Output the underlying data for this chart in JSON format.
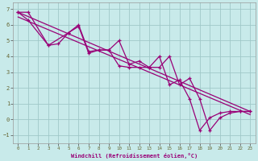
{
  "xlabel": "Windchill (Refroidissement éolien,°C)",
  "background_color": "#c8eaea",
  "grid_color": "#a0c8c8",
  "line_color": "#990077",
  "xlim": [
    -0.5,
    23.5
  ],
  "ylim": [
    -1.5,
    7.4
  ],
  "xticks": [
    0,
    1,
    2,
    3,
    4,
    5,
    6,
    7,
    8,
    9,
    10,
    11,
    12,
    13,
    14,
    15,
    16,
    17,
    18,
    19,
    20,
    21,
    22,
    23
  ],
  "yticks": [
    -1,
    0,
    1,
    2,
    3,
    4,
    5,
    6,
    7
  ],
  "series1_x": [
    0,
    1,
    3,
    5,
    6,
    7,
    8,
    9,
    10,
    11,
    12,
    13,
    14,
    15,
    16,
    17,
    18,
    19,
    20,
    21,
    22,
    23
  ],
  "series1_y": [
    6.8,
    6.8,
    4.7,
    5.5,
    5.9,
    4.2,
    4.4,
    4.4,
    5.0,
    3.5,
    3.7,
    3.3,
    3.3,
    4.0,
    2.2,
    2.6,
    1.3,
    -0.7,
    0.1,
    0.4,
    0.5,
    0.5
  ],
  "series2_x": [
    0,
    1,
    3,
    4,
    5,
    6,
    7,
    8,
    9,
    10,
    11,
    12,
    13,
    14,
    15,
    16,
    17,
    18,
    19,
    20,
    21,
    22,
    23
  ],
  "series2_y": [
    6.8,
    6.3,
    4.7,
    4.8,
    5.5,
    6.0,
    4.3,
    4.4,
    4.4,
    3.4,
    3.3,
    3.3,
    3.3,
    4.0,
    2.2,
    2.5,
    1.3,
    -0.7,
    0.1,
    0.4,
    0.5,
    0.5,
    0.5
  ],
  "trend1_x": [
    0,
    23
  ],
  "trend1_y": [
    6.8,
    0.5
  ],
  "trend2_x": [
    0,
    23
  ],
  "trend2_y": [
    6.5,
    0.3
  ]
}
